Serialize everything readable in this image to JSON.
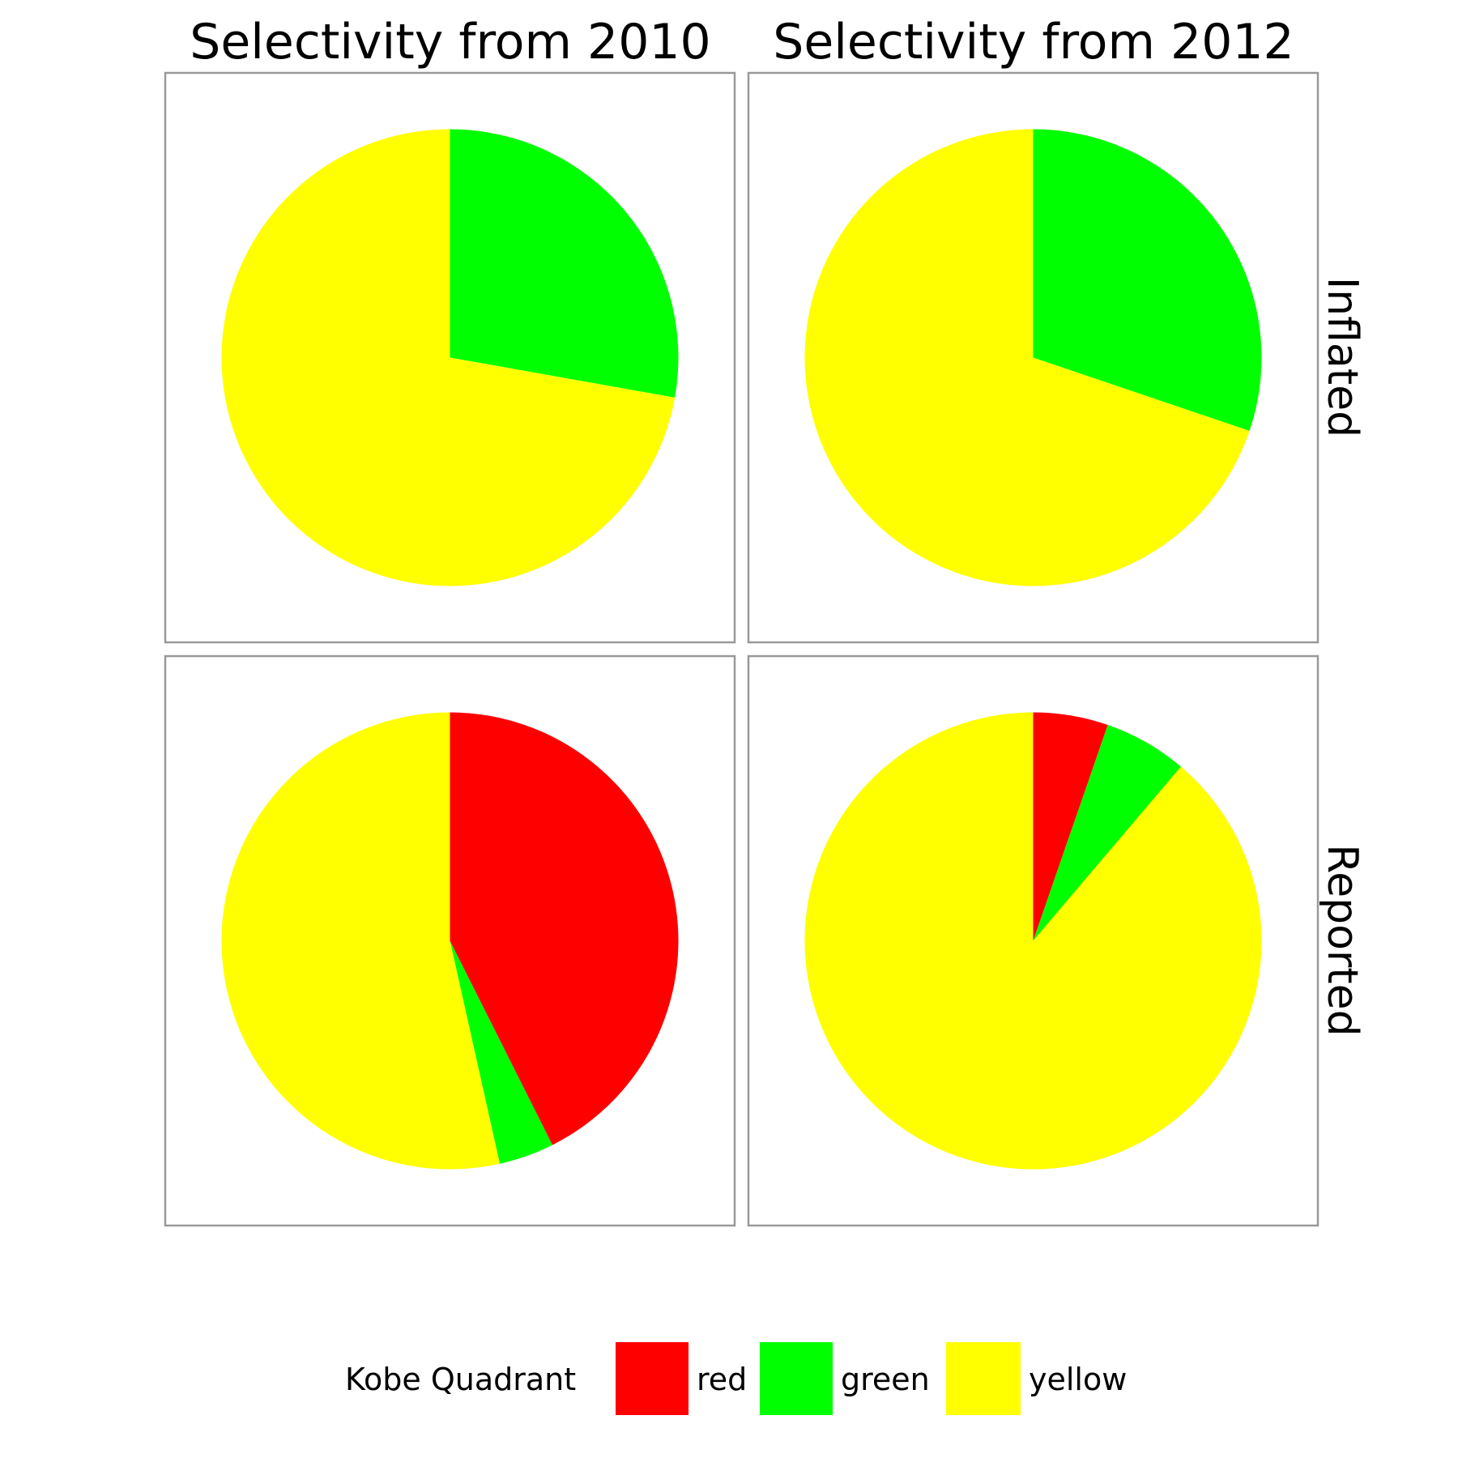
{
  "chart_data": {
    "type": "pie",
    "facet_columns": [
      "Selectivity from 2010",
      "Selectivity from 2012"
    ],
    "facet_rows": [
      "Inflated",
      "Reported"
    ],
    "legend": {
      "title": "Kobe Quadrant",
      "position": "bottom",
      "entries": [
        "red",
        "green",
        "yellow"
      ]
    },
    "colors": {
      "red": "#ff0000",
      "green": "#00ff00",
      "yellow": "#ffff00"
    },
    "panels": [
      {
        "row": "Inflated",
        "column": "Selectivity from 2010",
        "slices": [
          {
            "category": "red",
            "value": 0.0
          },
          {
            "category": "green",
            "value": 0.278
          },
          {
            "category": "yellow",
            "value": 0.722
          }
        ]
      },
      {
        "row": "Inflated",
        "column": "Selectivity from 2012",
        "slices": [
          {
            "category": "red",
            "value": 0.0
          },
          {
            "category": "green",
            "value": 0.302
          },
          {
            "category": "yellow",
            "value": 0.698
          }
        ]
      },
      {
        "row": "Reported",
        "column": "Selectivity from 2010",
        "slices": [
          {
            "category": "red",
            "value": 0.426
          },
          {
            "category": "green",
            "value": 0.039
          },
          {
            "category": "yellow",
            "value": 0.535
          }
        ]
      },
      {
        "row": "Reported",
        "column": "Selectivity from 2012",
        "slices": [
          {
            "category": "red",
            "value": 0.053
          },
          {
            "category": "green",
            "value": 0.059
          },
          {
            "category": "yellow",
            "value": 0.888
          }
        ]
      }
    ]
  }
}
